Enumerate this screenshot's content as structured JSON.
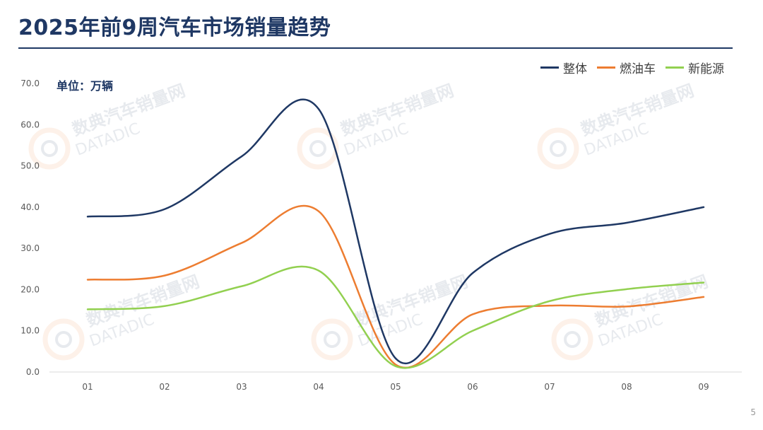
{
  "header": {
    "title": "2025年前9周汽车市场销量趋势"
  },
  "watermark": {
    "cn": "数典汽车销量网",
    "en": "DATADIC"
  },
  "page_number": "5",
  "colors": {
    "title": "#1f3864",
    "整体": "#1f3864",
    "燃油车": "#ed7d31",
    "新能源": "#92d050"
  },
  "chart_data": {
    "type": "line",
    "smooth": true,
    "unit_label": "单位：万辆",
    "categories": [
      "01",
      "02",
      "03",
      "04",
      "05",
      "06",
      "07",
      "08",
      "09"
    ],
    "series": [
      {
        "name": "整体",
        "values": [
          37.7,
          39.5,
          52.3,
          63.8,
          3.3,
          24.0,
          33.5,
          36.2,
          40.0
        ]
      },
      {
        "name": "燃油车",
        "values": [
          22.4,
          23.4,
          31.3,
          39.0,
          1.8,
          14.0,
          16.1,
          15.9,
          18.2
        ]
      },
      {
        "name": "新能源",
        "values": [
          15.2,
          16.0,
          20.8,
          24.6,
          1.4,
          10.0,
          17.2,
          20.1,
          21.7
        ]
      }
    ],
    "ylim": [
      0,
      70
    ],
    "yticks": [
      "0.0",
      "10.0",
      "20.0",
      "30.0",
      "40.0",
      "50.0",
      "60.0",
      "70.0"
    ],
    "grid": false,
    "legend": "top-right"
  }
}
